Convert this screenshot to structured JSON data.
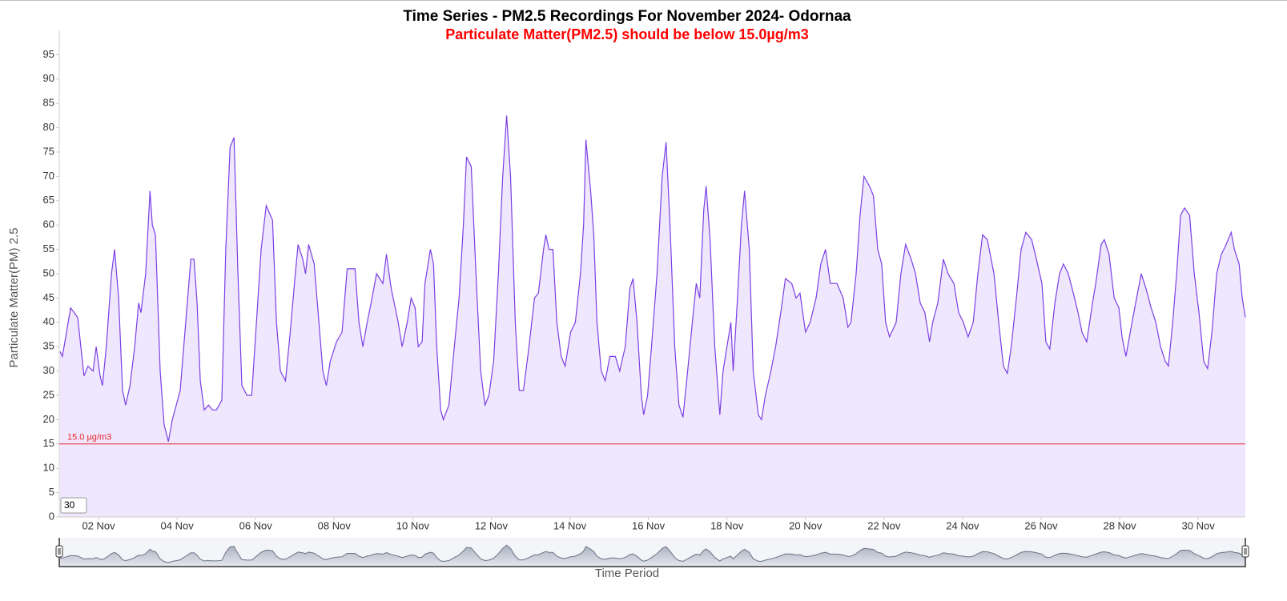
{
  "chart_data": {
    "type": "area",
    "title": "Time Series - PM2.5 Recordings For November 2024- Odornaa",
    "subtitle": "Particulate Matter(PM2.5) should be below 15.0µg/m3",
    "y_label": "Particulate Matter(PM) 2.5",
    "x_label": "Time Period",
    "range_input": "30",
    "threshold": 15,
    "threshold_label": "15.0 µg/m3",
    "threshold_color": "#e8252b",
    "color": "#7b3fe4",
    "fill": "#efe7fd",
    "ylim": [
      0,
      100
    ],
    "yticks": [
      0,
      5,
      10,
      15,
      20,
      25,
      30,
      35,
      40,
      45,
      50,
      55,
      60,
      65,
      70,
      75,
      80,
      85,
      90,
      95
    ],
    "xlim": [
      1,
      31.2
    ],
    "xticks": [
      {
        "value": 2,
        "label": "02 Nov"
      },
      {
        "value": 4,
        "label": "04 Nov"
      },
      {
        "value": 6,
        "label": "06 Nov"
      },
      {
        "value": 8,
        "label": "08 Nov"
      },
      {
        "value": 10,
        "label": "10 Nov"
      },
      {
        "value": 12,
        "label": "12 Nov"
      },
      {
        "value": 14,
        "label": "14 Nov"
      },
      {
        "value": 16,
        "label": "16 Nov"
      },
      {
        "value": 18,
        "label": "18 Nov"
      },
      {
        "value": 20,
        "label": "20 Nov"
      },
      {
        "value": 22,
        "label": "22 Nov"
      },
      {
        "value": 24,
        "label": "24 Nov"
      },
      {
        "value": 26,
        "label": "26 Nov"
      },
      {
        "value": 28,
        "label": "28 Nov"
      },
      {
        "value": 30,
        "label": "30 Nov"
      }
    ],
    "x": [
      1.02,
      1.08,
      1.29,
      1.47,
      1.63,
      1.73,
      1.86,
      1.94,
      2.04,
      2.1,
      2.2,
      2.33,
      2.41,
      2.51,
      2.61,
      2.69,
      2.8,
      2.92,
      3.02,
      3.08,
      3.2,
      3.31,
      3.37,
      3.45,
      3.57,
      3.67,
      3.78,
      3.88,
      4.08,
      4.22,
      4.35,
      4.43,
      4.51,
      4.59,
      4.69,
      4.8,
      4.9,
      5.0,
      5.14,
      5.24,
      5.35,
      5.45,
      5.55,
      5.65,
      5.78,
      5.9,
      6.02,
      6.14,
      6.27,
      6.43,
      6.53,
      6.63,
      6.76,
      6.88,
      7.0,
      7.08,
      7.2,
      7.27,
      7.35,
      7.49,
      7.61,
      7.71,
      7.8,
      7.9,
      8.06,
      8.2,
      8.33,
      8.53,
      8.63,
      8.73,
      8.84,
      8.94,
      9.08,
      9.24,
      9.33,
      9.45,
      9.63,
      9.73,
      9.86,
      9.96,
      10.06,
      10.14,
      10.24,
      10.31,
      10.45,
      10.53,
      10.61,
      10.71,
      10.78,
      10.92,
      11.06,
      11.18,
      11.29,
      11.37,
      11.49,
      11.61,
      11.73,
      11.84,
      11.94,
      12.06,
      12.18,
      12.29,
      12.39,
      12.49,
      12.61,
      12.71,
      12.82,
      12.96,
      13.1,
      13.2,
      13.33,
      13.39,
      13.47,
      13.57,
      13.67,
      13.78,
      13.88,
      14.02,
      14.14,
      14.27,
      14.35,
      14.41,
      14.53,
      14.61,
      14.69,
      14.8,
      14.9,
      15.02,
      15.16,
      15.27,
      15.41,
      15.53,
      15.61,
      15.71,
      15.82,
      15.88,
      15.98,
      16.08,
      16.22,
      16.35,
      16.45,
      16.55,
      16.67,
      16.78,
      16.88,
      17.0,
      17.12,
      17.22,
      17.31,
      17.41,
      17.47,
      17.57,
      17.69,
      17.82,
      17.9,
      18.0,
      18.1,
      18.16,
      18.27,
      18.37,
      18.45,
      18.57,
      18.67,
      18.8,
      18.88,
      18.98,
      19.12,
      19.24,
      19.37,
      19.49,
      19.65,
      19.76,
      19.86,
      20.0,
      20.12,
      20.27,
      20.39,
      20.51,
      20.63,
      20.8,
      20.96,
      21.08,
      21.16,
      21.29,
      21.39,
      21.49,
      21.63,
      21.73,
      21.84,
      21.94,
      22.04,
      22.14,
      22.31,
      22.43,
      22.55,
      22.69,
      22.8,
      22.92,
      23.04,
      23.16,
      23.24,
      23.37,
      23.51,
      23.63,
      23.78,
      23.9,
      24.02,
      24.14,
      24.27,
      24.39,
      24.51,
      24.63,
      24.8,
      24.92,
      25.04,
      25.14,
      25.24,
      25.37,
      25.49,
      25.61,
      25.76,
      25.88,
      26.02,
      26.12,
      26.22,
      26.35,
      26.47,
      26.57,
      26.69,
      26.82,
      26.94,
      27.04,
      27.16,
      27.31,
      27.39,
      27.53,
      27.61,
      27.73,
      27.86,
      27.98,
      28.06,
      28.16,
      28.27,
      28.43,
      28.55,
      28.67,
      28.8,
      28.92,
      29.04,
      29.16,
      29.24,
      29.35,
      29.45,
      29.55,
      29.65,
      29.78,
      29.9,
      30.02,
      30.14,
      30.24,
      30.35,
      30.47,
      30.59,
      30.71,
      30.84,
      30.92,
      31.04,
      31.12,
      31.2
    ],
    "values": [
      34,
      33,
      43,
      41,
      29,
      31,
      30,
      35,
      29,
      27,
      35,
      50,
      55,
      45,
      26,
      23,
      27,
      35,
      44,
      42,
      50,
      67,
      60,
      58,
      30,
      19,
      15.5,
      20,
      26,
      40,
      53,
      53,
      44,
      28,
      22,
      23,
      22,
      22,
      24,
      55,
      76,
      78,
      50,
      27,
      25,
      25,
      40,
      55,
      64,
      61,
      40,
      30,
      28,
      38,
      49,
      56,
      53,
      50,
      56,
      52,
      40,
      30,
      27,
      32,
      36,
      38,
      51,
      51,
      40,
      35,
      40,
      44,
      50,
      48,
      54,
      47,
      40,
      35,
      40,
      45,
      43,
      35,
      36,
      48,
      55,
      52,
      35,
      22,
      20,
      23,
      35,
      45,
      60,
      74,
      72,
      50,
      30,
      23,
      25,
      32,
      50,
      70,
      82.5,
      70,
      40,
      26,
      26,
      35,
      45,
      46,
      55,
      58,
      55,
      55,
      40,
      33,
      31,
      38,
      40,
      50,
      60,
      77.5,
      67,
      58,
      40,
      30,
      28,
      33,
      33,
      30,
      35,
      47,
      49,
      40,
      25,
      21,
      25,
      35,
      50,
      70,
      77,
      60,
      35,
      23,
      20.5,
      30,
      40,
      48,
      45,
      63,
      68,
      57,
      35,
      21,
      30,
      35,
      40,
      30,
      45,
      60,
      67,
      55,
      30,
      21,
      20,
      25,
      30,
      35,
      42,
      49,
      48,
      45,
      46,
      38,
      40,
      45,
      52,
      55,
      48,
      48,
      45,
      39,
      40,
      50,
      62,
      70,
      68,
      66,
      55,
      52,
      40,
      37,
      40,
      50,
      56,
      53,
      50,
      44,
      42,
      36,
      40,
      44,
      53,
      50,
      48,
      42,
      40,
      37,
      40,
      50,
      58,
      57,
      50,
      40,
      31,
      29.5,
      35,
      45,
      55,
      58.5,
      57,
      53,
      48,
      36,
      34.5,
      44,
      50,
      52,
      50,
      46,
      42,
      38,
      36,
      44,
      48,
      56,
      57,
      54,
      45,
      43,
      37,
      33,
      38,
      45,
      50,
      47,
      43,
      40,
      35,
      32,
      31,
      40,
      50,
      62,
      63.5,
      62,
      50,
      42,
      32,
      30.5,
      38,
      50,
      54,
      56,
      58.5,
      55,
      52,
      45,
      41
    ]
  }
}
